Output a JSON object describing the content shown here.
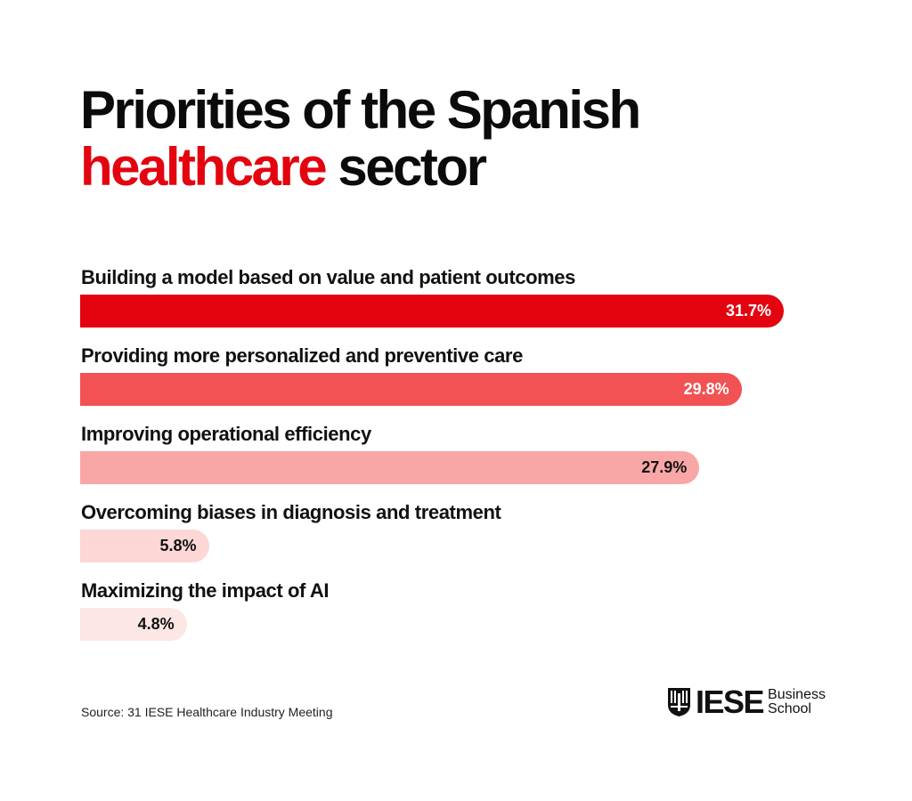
{
  "title": {
    "line1": "Priorities of the Spanish",
    "line2_accent": "healthcare",
    "line2_rest": "sector"
  },
  "chart_data": {
    "type": "bar",
    "orientation": "horizontal",
    "title": "Priorities of the Spanish healthcare sector",
    "categories": [
      "Building a model based on value and patient outcomes",
      "Providing more personalized and preventive care",
      "Improving operational efficiency",
      "Overcoming biases in diagnosis and treatment",
      "Maximizing the impact of AI"
    ],
    "values": [
      31.7,
      29.8,
      27.9,
      5.8,
      4.8
    ],
    "value_labels": [
      "31.7%",
      "29.8%",
      "27.9%",
      "5.8%",
      "4.8%"
    ],
    "unit": "%",
    "xlim": [
      0,
      31.7
    ],
    "grid": false,
    "legend": "none",
    "bar_colors": [
      "#e3040f",
      "#f25253",
      "#f9a7a6",
      "#fcd7d6",
      "#fde6e6"
    ],
    "value_label_colors": [
      "#ffffff",
      "#ffffff",
      "#111111",
      "#111111",
      "#111111"
    ]
  },
  "source": "Source: 31 IESE Healthcare Industry Meeting",
  "logo": {
    "wordmark": "IESE",
    "line1": "Business",
    "line2": "School"
  },
  "colors": {
    "accent": "#e3040f",
    "text": "#111111"
  }
}
